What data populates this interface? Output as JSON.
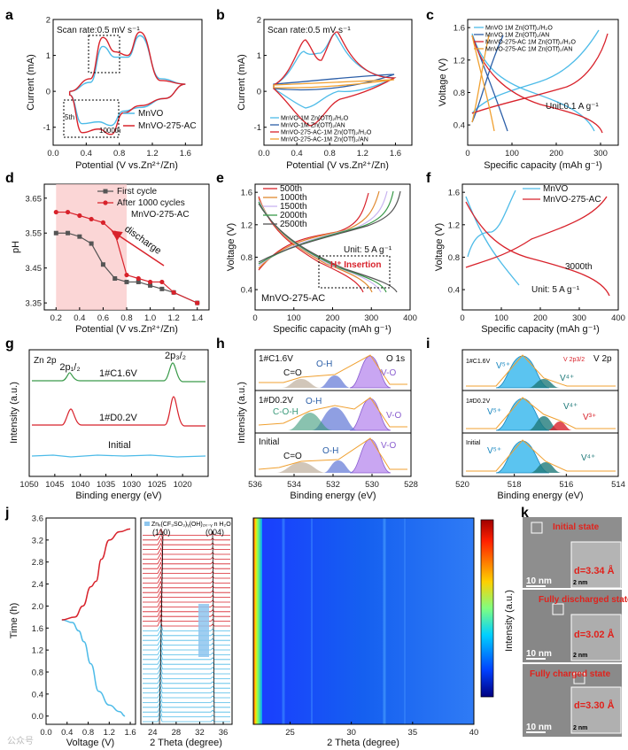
{
  "colors": {
    "light_blue": "#4dbbe8",
    "red": "#d8222b",
    "dark_blue": "#2c5fa8",
    "orange": "#f0a030",
    "gray": "#666666",
    "green": "#3a9a4a",
    "purple": "#9b7fd8",
    "lavender": "#c8b4f0",
    "pink_band": "#f9c8c8",
    "fit_teal": "#1f7a7a",
    "fit_blue_fill": "#5bc4f0",
    "fit_purple_fill": "#c9a6f2",
    "fit_gray_fill": "#b3a08a"
  },
  "panel_labels": [
    "a",
    "b",
    "c",
    "d",
    "e",
    "f",
    "g",
    "h",
    "i",
    "j",
    "k"
  ],
  "chart_data": [
    {
      "panel": "a",
      "type": "line",
      "annotation": "Scan rate:0.5 mV s⁻¹",
      "xlabel": "Potential (V vs.Zn²⁺/Zn)",
      "ylabel": "Current (mA)",
      "xlim": [
        0.0,
        1.8
      ],
      "ylim": [
        -1.5,
        2.0
      ],
      "xticks": [
        "0.0",
        "0.4",
        "0.8",
        "1.2",
        "1.6"
      ],
      "yticks": [
        "-1",
        "0",
        "1",
        "2"
      ],
      "labels": [
        "5th",
        "1000th"
      ],
      "legend": [
        "MnVO",
        "MnVO-275-AC"
      ],
      "series": [
        {
          "name": "MnVO",
          "x": [
            0.2,
            0.45,
            0.6,
            0.75,
            0.9,
            1.05,
            1.3,
            1.6,
            1.35,
            1.05,
            0.85,
            0.7,
            0.55,
            0.35,
            0.2
          ],
          "y": [
            0.0,
            0.25,
            1.25,
            0.95,
            0.95,
            1.55,
            0.35,
            0.2,
            -0.2,
            -0.45,
            -0.55,
            -0.95,
            -0.85,
            -0.9,
            -0.1
          ]
        },
        {
          "name": "MnVO-275-AC",
          "x": [
            0.2,
            0.45,
            0.6,
            0.75,
            0.9,
            1.05,
            1.3,
            1.6,
            1.35,
            1.05,
            0.85,
            0.7,
            0.55,
            0.35,
            0.2
          ],
          "y": [
            0.0,
            0.35,
            1.5,
            1.1,
            1.0,
            1.65,
            0.3,
            0.2,
            -0.2,
            -0.4,
            -0.6,
            -1.2,
            -1.05,
            -1.15,
            -0.1
          ]
        }
      ]
    },
    {
      "panel": "b",
      "type": "line",
      "annotation": "Scan rate:0.5 mV s⁻¹",
      "xlabel": "Potential (V vs.Zn²⁺/Zn)",
      "ylabel": "Current (mA)",
      "xlim": [
        0.0,
        1.8
      ],
      "ylim": [
        -1.5,
        2.0
      ],
      "xticks": [
        "0.0",
        "0.4",
        "0.8",
        "1.2",
        "1.6"
      ],
      "yticks": [
        "-1",
        "0",
        "1",
        "2"
      ],
      "legend": [
        "MnVO-1M Zn(OTf)₂/H₂O",
        "MnVO-1M Zn(OTf)₂/AN",
        "MnVO-275-AC-1M Zn(OTf)₂/H₂O",
        "MnVO-275-AC-1M Zn(OTf)₂/AN"
      ]
    },
    {
      "panel": "c",
      "type": "line",
      "xlabel": "Specific capacity (mAh g⁻¹)",
      "ylabel": "Voltage (V)",
      "xlim": [
        0,
        340
      ],
      "ylim": [
        0.15,
        1.7
      ],
      "xticks": [
        "0",
        "100",
        "200",
        "300"
      ],
      "yticks": [
        "0.4",
        "0.8",
        "1.2",
        "1.6"
      ],
      "annotation": "Unit:0.1 A g⁻¹",
      "legend": [
        "MnVO 1M Zn(OTf)₂/H₂O",
        "MnVO 1M Zn(OTf)₂/AN",
        "MnVO-275-AC 1M Zn(OTf)₂/H₂O",
        "MnVO-275-AC 1M Zn(OTf)₂/AN"
      ]
    },
    {
      "panel": "d",
      "type": "line",
      "xlabel": "Potential (V vs.Zn²⁺/Zn)",
      "ylabel": "pH",
      "xlim": [
        0.1,
        1.5
      ],
      "ylim": [
        3.33,
        3.69
      ],
      "xticks": [
        "0.2",
        "0.4",
        "0.6",
        "0.8",
        "1.0",
        "1.2",
        "1.4"
      ],
      "yticks": [
        "3.35",
        "3.45",
        "3.55",
        "3.65"
      ],
      "highlight_x": [
        0.2,
        0.8
      ],
      "annotation": "MnVO-275-AC",
      "arrow_label": "discharge",
      "series": [
        {
          "name": "First cycle",
          "x": [
            0.2,
            0.3,
            0.4,
            0.5,
            0.6,
            0.7,
            0.8,
            0.9,
            1.0,
            1.1,
            1.2,
            1.4
          ],
          "y": [
            3.55,
            3.55,
            3.54,
            3.52,
            3.46,
            3.42,
            3.41,
            3.41,
            3.4,
            3.39,
            3.38,
            3.35
          ]
        },
        {
          "name": "After 1000 cycles",
          "x": [
            0.2,
            0.3,
            0.4,
            0.5,
            0.6,
            0.7,
            0.8,
            0.9,
            1.0,
            1.1,
            1.2,
            1.4
          ],
          "y": [
            3.61,
            3.61,
            3.6,
            3.59,
            3.58,
            3.55,
            3.43,
            3.42,
            3.41,
            3.41,
            3.38,
            3.35
          ]
        }
      ]
    },
    {
      "panel": "e",
      "type": "line",
      "xlabel": "Specific capacity (mAh g⁻¹)",
      "ylabel": "Voltage (V)",
      "xlim": [
        0,
        400
      ],
      "ylim": [
        0.15,
        1.7
      ],
      "xticks": [
        "0",
        "100",
        "200",
        "300",
        "400"
      ],
      "yticks": [
        "0.4",
        "0.8",
        "1.2",
        "1.6"
      ],
      "legend": [
        "500th",
        "1000th",
        "1500th",
        "2000th",
        "2500th"
      ],
      "annotations": [
        "Unit: 5 A g⁻¹",
        "H⁺ Insertion",
        "MnVO-275-AC"
      ]
    },
    {
      "panel": "f",
      "type": "line",
      "xlabel": "Specific capacity (mAh g⁻¹)",
      "ylabel": "Voltage (V)",
      "xlim": [
        0,
        400
      ],
      "ylim": [
        0.15,
        1.7
      ],
      "xticks": [
        "0",
        "100",
        "200",
        "300",
        "400"
      ],
      "yticks": [
        "0.4",
        "0.8",
        "1.2",
        "1.6"
      ],
      "legend": [
        "MnVO",
        "MnVO-275-AC"
      ],
      "annotations": [
        "3000th",
        "Unit: 5 A g⁻¹"
      ]
    },
    {
      "panel": "g",
      "type": "line",
      "title": "Zn 2p",
      "xlabel": "Binding energy (eV)",
      "ylabel": "Intensity (a.u.)",
      "xlim": [
        1050,
        1015
      ],
      "xticks": [
        "1050",
        "1045",
        "1040",
        "1035",
        "1030",
        "1025",
        "1020"
      ],
      "peaks": [
        "2p₁/₂",
        "2p₃/₂"
      ],
      "series_labels": [
        "1#C1.6V",
        "1#D0.2V",
        "Initial"
      ]
    },
    {
      "panel": "h",
      "type": "line",
      "title": "O 1s",
      "xlabel": "Binding energy (eV)",
      "ylabel": "Intensity (a.u.)",
      "xlim": [
        536,
        528
      ],
      "xticks": [
        "536",
        "534",
        "532",
        "530",
        "528"
      ],
      "peak_labels": [
        "C=O",
        "O-H",
        "V-O",
        "C-O-H"
      ],
      "series_labels": [
        "1#C1.6V",
        "1#D0.2V",
        "Initial"
      ]
    },
    {
      "panel": "i",
      "type": "line",
      "title": "V 2p",
      "xlabel": "Binding energy (eV)",
      "xlim": [
        520,
        514
      ],
      "xticks": [
        "520",
        "518",
        "516",
        "514"
      ],
      "peak_labels": [
        "V⁵⁺",
        "V⁴⁺",
        "V³⁺"
      ],
      "legend": "V 2p3/2",
      "series_labels": [
        "1#C1.6V",
        "1#D0.2V",
        "Initial"
      ]
    },
    {
      "panel": "j",
      "type": "line",
      "xlabel": "Voltage (V)",
      "ylabel": "Time (h)",
      "xlim": [
        0.0,
        1.7
      ],
      "ylim": [
        -0.15,
        3.6
      ],
      "xticks": [
        "0.0",
        "0.4",
        "0.8",
        "1.2",
        "1.6"
      ],
      "yticks": [
        "0.0",
        "0.4",
        "0.8",
        "1.2",
        "1.6",
        "2.0",
        "2.4",
        "2.8",
        "3.2",
        "3.6"
      ],
      "xrd_xlabel": "2 Theta (degree)",
      "xrd_xticks": [
        "24",
        "28",
        "32",
        "36"
      ],
      "xrd_legend": "Znₓ(CF₃SO₃)ᵧ(OH)₂ₓ₋ᵧ n H₂O",
      "xrd_peaks": [
        "(110)",
        "(004)"
      ],
      "heat_xlabel": "2 Theta (degree)",
      "heat_xticks": [
        "25",
        "30",
        "35",
        "40"
      ]
    },
    {
      "panel": "k",
      "type": "table",
      "ylabel": "Intensity (a.u.)",
      "states": [
        "Initial state",
        "Fully discharged state",
        "Fully charged state"
      ],
      "d_spacings": [
        "d=3.34 Å",
        "d=3.02 Å",
        "d=3.30 Å"
      ],
      "scale_large": "10 nm",
      "scale_small": "2 nm"
    }
  ],
  "watermark": "公众号"
}
